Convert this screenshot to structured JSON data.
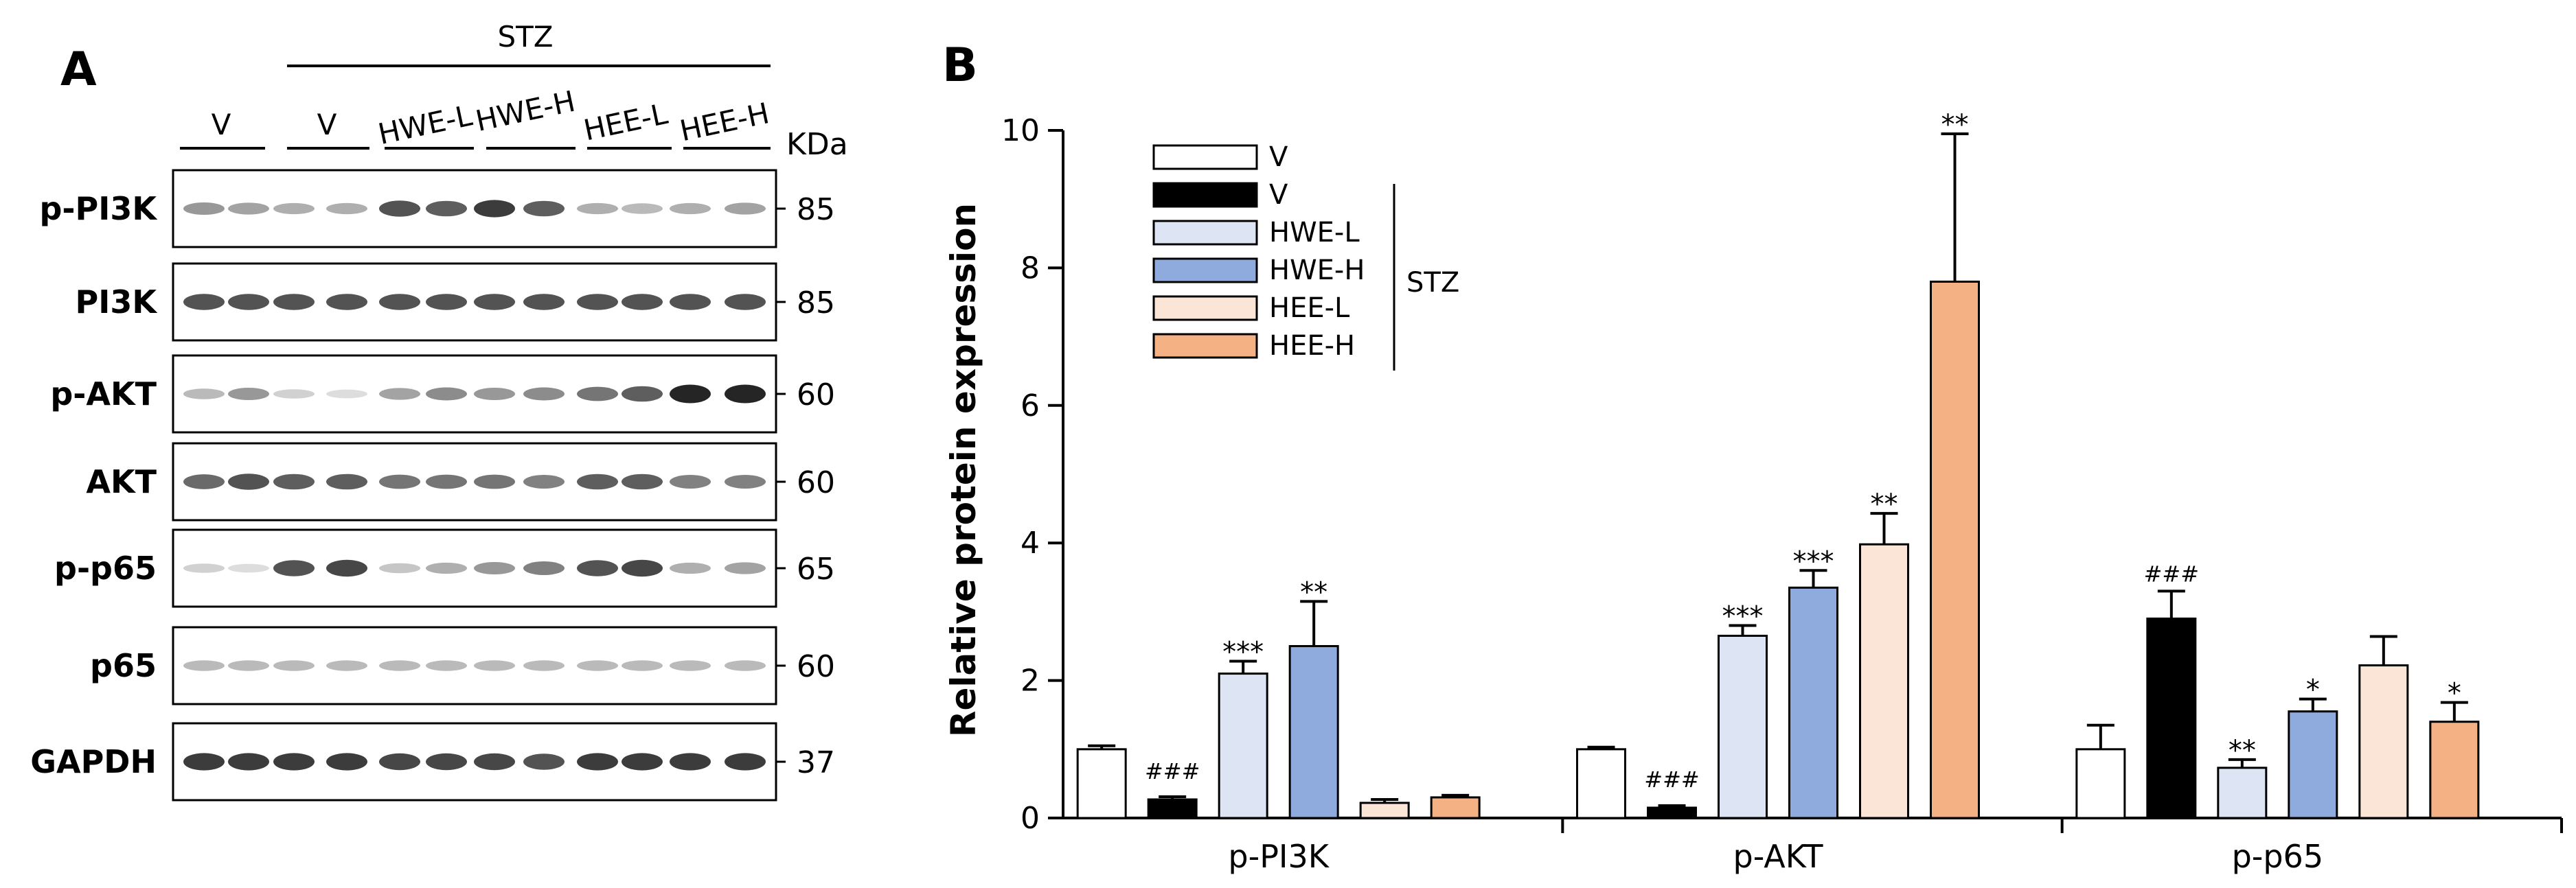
{
  "figure": {
    "panel_a_label": "A",
    "panel_b_label": "B",
    "stz_label": "STZ",
    "kda_label": "KDa",
    "lane_groups": [
      "V",
      "V",
      "HWE-L",
      "HWE-H",
      "HEE-L",
      "HEE-H"
    ],
    "blots": [
      {
        "name": "p-PI3K",
        "kda": "85"
      },
      {
        "name": "PI3K",
        "kda": "85"
      },
      {
        "name": "p-AKT",
        "kda": "60"
      },
      {
        "name": "AKT",
        "kda": "60"
      },
      {
        "name": "p-p65",
        "kda": "65"
      },
      {
        "name": "p65",
        "kda": "60"
      },
      {
        "name": "GAPDH",
        "kda": "37"
      }
    ]
  },
  "chart_data": {
    "type": "bar",
    "title": "",
    "xlabel": "",
    "ylabel": "Relative protein expression",
    "ylim": [
      0,
      10
    ],
    "yticks": [
      "0",
      "2",
      "4",
      "6",
      "8",
      "10"
    ],
    "categories": [
      "p-PI3K",
      "p-AKT",
      "p-p65"
    ],
    "series": [
      {
        "name": "V",
        "color": "#ffffff",
        "values": [
          1.0,
          1.0,
          1.0
        ],
        "errors": [
          0.05,
          0.03,
          0.35
        ],
        "annotations": [
          "",
          "",
          ""
        ]
      },
      {
        "name": "V",
        "color": "#000000",
        "values": [
          0.27,
          0.15,
          2.9
        ],
        "errors": [
          0.04,
          0.03,
          0.4
        ],
        "annotations": [
          "###",
          "###",
          "###"
        ]
      },
      {
        "name": "HWE-L",
        "color": "#dde5f4",
        "values": [
          2.1,
          2.65,
          0.73
        ],
        "errors": [
          0.18,
          0.15,
          0.12
        ],
        "annotations": [
          "***",
          "***",
          "**"
        ]
      },
      {
        "name": "HWE-H",
        "color": "#8faadc",
        "values": [
          2.5,
          3.35,
          1.55
        ],
        "errors": [
          0.65,
          0.25,
          0.18
        ],
        "annotations": [
          "**",
          "***",
          "*"
        ]
      },
      {
        "name": "HEE-L",
        "color": "#fbe5d6",
        "values": [
          0.22,
          3.98,
          2.22
        ],
        "errors": [
          0.05,
          0.45,
          0.42
        ],
        "annotations": [
          "",
          "**",
          ""
        ]
      },
      {
        "name": "HEE-H",
        "color": "#f4b183",
        "values": [
          0.3,
          7.8,
          1.4
        ],
        "errors": [
          0.03,
          2.15,
          0.28
        ],
        "annotations": [
          "",
          "**",
          "*"
        ]
      }
    ],
    "legend": {
      "position": "top-left",
      "group_label": "STZ",
      "grouped_entries": [
        "V",
        "HWE-L",
        "HWE-H",
        "HEE-L",
        "HEE-H"
      ]
    }
  }
}
